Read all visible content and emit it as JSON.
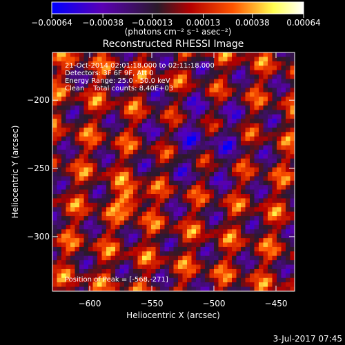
{
  "chart_data": {
    "type": "heatmap",
    "title": "Reconstructed RHESSI Image",
    "xlabel": "Heliocentric X (arcsec)",
    "ylabel": "Heliocentric Y (arcsec)",
    "xlim": [
      -630,
      -435
    ],
    "ylim": [
      -340,
      -165
    ],
    "x_ticks": [
      -600,
      -550,
      -500,
      -450
    ],
    "x_tick_labels": [
      "−600",
      "−550",
      "−500",
      "−450"
    ],
    "y_ticks": [
      -200,
      -250,
      -300
    ],
    "y_tick_labels": [
      "−200",
      "−250",
      "−300"
    ],
    "colorbar": {
      "min": -0.00064,
      "max": 0.00064,
      "ticks": [
        -0.00064,
        -0.00038,
        -0.00013,
        0.00013,
        0.00038,
        0.00064
      ],
      "tick_labels": [
        "−0.00064",
        "−0.00038",
        "−0.00013",
        "0.00013",
        "0.00038",
        "0.00064"
      ],
      "unit_label": "(photons cm⁻² s⁻¹ asec⁻²)",
      "colors": [
        "#0000ff",
        "#5a00b4",
        "#2a1a2a",
        "#b40000",
        "#ff5500",
        "#ffff50",
        "#ffffff"
      ]
    },
    "annotations": [
      "21-Oct-2014 02:01:18.000 to 02:11:18.000",
      "Detectors: 3F 6F 9F, Att 0",
      "Energy Range: 25.0 - 50.0 keV",
      "Clean    Total counts: 8.40E+03"
    ],
    "peak_label": "Position of Peak = [-568,-271]",
    "peak": {
      "x": -568,
      "y": -271
    },
    "grid": false
  },
  "footer": {
    "timestamp": "3-Jul-2017 07:45"
  }
}
